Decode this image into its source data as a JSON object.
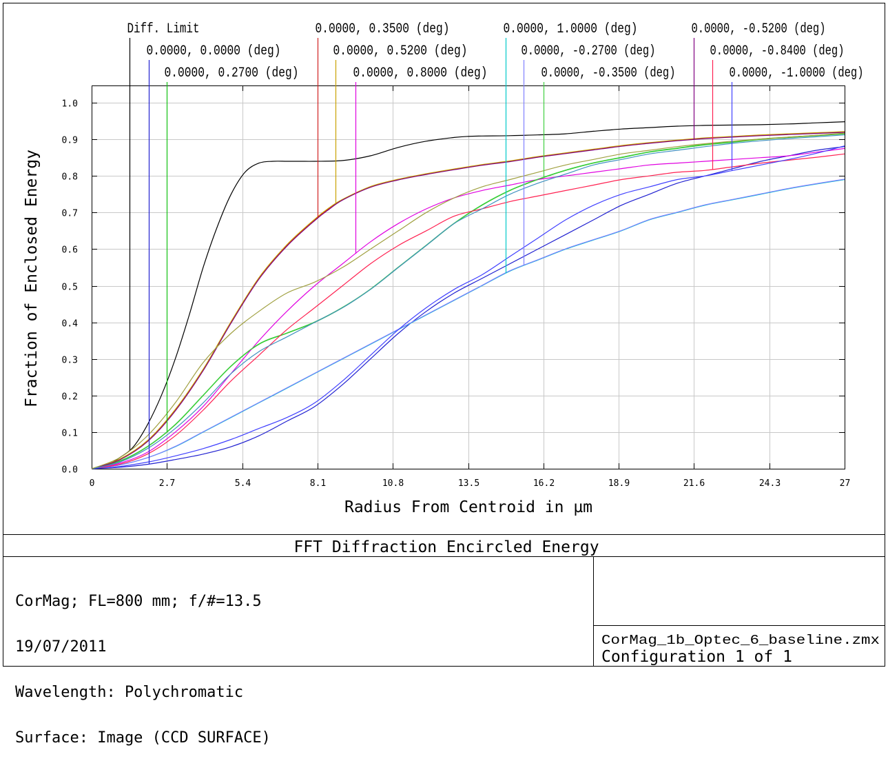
{
  "chart_data": {
    "type": "line",
    "title": "FFT Diffraction Encircled Energy",
    "xlabel": "Radius From Centroid in µm",
    "ylabel": "Fraction of Enclosed Energy",
    "xlim": [
      0,
      27
    ],
    "ylim": [
      0,
      1.05
    ],
    "x_ticks": [
      "0",
      "2.7",
      "5.4",
      "8.1",
      "10.8",
      "13.5",
      "16.2",
      "18.9",
      "21.6",
      "24.3",
      "27"
    ],
    "y_ticks": [
      "0.0",
      "0.1",
      "0.2",
      "0.3",
      "0.4",
      "0.5",
      "0.6",
      "0.7",
      "0.8",
      "0.9",
      "1.0"
    ],
    "grid": true,
    "series": [
      {
        "name": "Diff. Limit",
        "color": "#000000",
        "marker_x": 1.35,
        "x": [
          0,
          0.5,
          1,
          1.5,
          2,
          2.5,
          3,
          3.5,
          4,
          4.5,
          5,
          5.5,
          6,
          6.5,
          7,
          7.5,
          8,
          9,
          10,
          11,
          12,
          13,
          13.5,
          14,
          15,
          16,
          17,
          18,
          19,
          20,
          21,
          22,
          23,
          24,
          25,
          26,
          27
        ],
        "y": [
          0,
          0.008,
          0.03,
          0.06,
          0.12,
          0.2,
          0.3,
          0.42,
          0.55,
          0.66,
          0.75,
          0.81,
          0.835,
          0.84,
          0.84,
          0.84,
          0.84,
          0.842,
          0.855,
          0.878,
          0.895,
          0.905,
          0.908,
          0.909,
          0.91,
          0.912,
          0.915,
          0.922,
          0.928,
          0.932,
          0.936,
          0.938,
          0.939,
          0.94,
          0.942,
          0.945,
          0.948
        ]
      },
      {
        "name": "0.0000, 0.0000 (deg)",
        "color": "#2020d0",
        "marker_x": 2.05,
        "x": [
          0,
          1,
          2,
          3,
          4,
          5,
          6,
          7,
          8,
          9,
          10,
          11,
          12,
          13,
          14,
          15,
          16,
          17,
          18,
          19,
          20,
          21,
          22,
          23,
          24,
          25,
          26,
          27
        ],
        "y": [
          0,
          0.004,
          0.012,
          0.025,
          0.04,
          0.06,
          0.09,
          0.13,
          0.17,
          0.23,
          0.3,
          0.37,
          0.43,
          0.48,
          0.52,
          0.56,
          0.6,
          0.64,
          0.68,
          0.72,
          0.75,
          0.78,
          0.8,
          0.82,
          0.84,
          0.855,
          0.87,
          0.88
        ]
      },
      {
        "name": "0.0000, 0.2700 (deg)",
        "color": "#10c010",
        "marker_x": 2.7,
        "x": [
          0,
          1,
          2,
          3,
          4,
          5,
          6,
          7,
          8,
          9,
          10,
          11,
          12,
          13,
          14,
          15,
          16,
          17,
          18,
          19,
          20,
          21,
          22,
          23,
          24,
          25,
          26,
          27
        ],
        "y": [
          0,
          0.02,
          0.06,
          0.12,
          0.2,
          0.28,
          0.34,
          0.37,
          0.4,
          0.44,
          0.49,
          0.55,
          0.61,
          0.67,
          0.72,
          0.76,
          0.79,
          0.815,
          0.835,
          0.85,
          0.865,
          0.875,
          0.885,
          0.892,
          0.9,
          0.905,
          0.91,
          0.915
        ]
      },
      {
        "name": "0.0000, 0.3500 (deg)",
        "color": "#d02020",
        "marker_x": 8.1,
        "x": [
          0,
          1,
          2,
          3,
          4,
          5,
          6,
          7,
          8,
          8.5,
          9,
          10,
          11,
          12,
          13,
          14,
          15,
          16,
          17,
          18,
          19,
          20,
          21,
          22,
          23,
          24,
          25,
          26,
          27
        ],
        "y": [
          0,
          0.025,
          0.075,
          0.16,
          0.27,
          0.4,
          0.52,
          0.61,
          0.68,
          0.71,
          0.735,
          0.77,
          0.79,
          0.805,
          0.818,
          0.83,
          0.84,
          0.852,
          0.862,
          0.872,
          0.882,
          0.89,
          0.897,
          0.903,
          0.907,
          0.911,
          0.914,
          0.917,
          0.92
        ]
      },
      {
        "name": "0.0000, 0.5200 (deg)",
        "color": "#c8a000",
        "marker_x": 8.75,
        "x": [
          0,
          1,
          2,
          3,
          4,
          5,
          6,
          7,
          8,
          8.5,
          9,
          10,
          11,
          12,
          13,
          14,
          15,
          16,
          17,
          18,
          19,
          20,
          21,
          22,
          23,
          24,
          25,
          26,
          27
        ],
        "y": [
          0,
          0.026,
          0.077,
          0.162,
          0.272,
          0.402,
          0.522,
          0.612,
          0.682,
          0.712,
          0.736,
          0.771,
          0.791,
          0.806,
          0.819,
          0.831,
          0.841,
          0.853,
          0.863,
          0.873,
          0.883,
          0.891,
          0.898,
          0.904,
          0.908,
          0.912,
          0.915,
          0.918,
          0.921
        ]
      },
      {
        "name": "0.0000, 0.8000 (deg)",
        "color": "#e000e0",
        "marker_x": 9.45,
        "x": [
          0,
          1,
          2,
          3,
          4,
          5,
          6,
          7,
          8,
          9,
          10,
          11,
          12,
          13,
          14,
          15,
          16,
          17,
          18,
          19,
          20,
          21,
          22,
          23,
          24,
          25,
          26,
          27
        ],
        "y": [
          0,
          0.015,
          0.045,
          0.1,
          0.17,
          0.26,
          0.35,
          0.43,
          0.5,
          0.56,
          0.62,
          0.67,
          0.71,
          0.74,
          0.76,
          0.775,
          0.79,
          0.8,
          0.81,
          0.82,
          0.83,
          0.835,
          0.84,
          0.845,
          0.85,
          0.855,
          0.865,
          0.875
        ]
      },
      {
        "name": "0.0000, 1.0000 (deg)",
        "color": "#00c8c8",
        "marker_x": 14.85,
        "x": [
          0,
          1,
          2,
          3,
          4,
          5,
          6,
          7,
          8,
          9,
          10,
          11,
          12,
          13,
          14,
          15,
          16,
          17,
          18,
          19,
          20,
          21,
          22,
          23,
          24,
          25,
          26,
          27
        ],
        "y": [
          0,
          0.01,
          0.03,
          0.06,
          0.1,
          0.14,
          0.18,
          0.22,
          0.26,
          0.3,
          0.34,
          0.38,
          0.42,
          0.46,
          0.5,
          0.54,
          0.57,
          0.6,
          0.625,
          0.65,
          0.68,
          0.7,
          0.72,
          0.735,
          0.75,
          0.765,
          0.778,
          0.79
        ]
      },
      {
        "name": "0.0000, -0.2700 (deg)",
        "color": "#8080ff",
        "marker_x": 15.5,
        "x": [
          0,
          1,
          2,
          3,
          4,
          5,
          6,
          7,
          8,
          9,
          10,
          11,
          12,
          13,
          14,
          15,
          16,
          17,
          18,
          19,
          20,
          21,
          22,
          23,
          24,
          25,
          26,
          27
        ],
        "y": [
          0,
          0.01,
          0.03,
          0.061,
          0.101,
          0.141,
          0.181,
          0.221,
          0.261,
          0.301,
          0.341,
          0.381,
          0.421,
          0.461,
          0.501,
          0.541,
          0.571,
          0.601,
          0.626,
          0.651,
          0.681,
          0.701,
          0.721,
          0.736,
          0.751,
          0.766,
          0.779,
          0.791
        ]
      },
      {
        "name": "0.0000, -0.3500 (deg)",
        "color": "#40d040",
        "marker_x": 16.2,
        "x": [
          0,
          1,
          2,
          3,
          4,
          5,
          6,
          7,
          8,
          9,
          10,
          11,
          12,
          13,
          14,
          15,
          16,
          17,
          18,
          19,
          20,
          21,
          22,
          23,
          24,
          25,
          26,
          27
        ],
        "y": [
          0,
          0.021,
          0.061,
          0.121,
          0.201,
          0.281,
          0.341,
          0.371,
          0.401,
          0.441,
          0.491,
          0.551,
          0.611,
          0.671,
          0.721,
          0.761,
          0.791,
          0.816,
          0.836,
          0.851,
          0.866,
          0.876,
          0.886,
          0.893,
          0.901,
          0.906,
          0.911,
          0.916
        ]
      },
      {
        "name": "0.0000, -0.5200 (deg)",
        "color": "#800080",
        "marker_x": 21.6,
        "x": [
          0,
          1,
          2,
          3,
          4,
          5,
          6,
          7,
          8,
          8.5,
          9,
          10,
          11,
          12,
          13,
          14,
          15,
          16,
          17,
          18,
          19,
          20,
          21,
          22,
          23,
          24,
          25,
          26,
          27
        ],
        "y": [
          0,
          0.024,
          0.074,
          0.158,
          0.268,
          0.398,
          0.518,
          0.608,
          0.678,
          0.708,
          0.734,
          0.769,
          0.789,
          0.804,
          0.817,
          0.829,
          0.839,
          0.851,
          0.861,
          0.871,
          0.881,
          0.889,
          0.896,
          0.902,
          0.906,
          0.91,
          0.913,
          0.916,
          0.919
        ]
      },
      {
        "name": "0.0000, -0.8400 (deg)",
        "color": "#ff2050",
        "marker_x": 22.25,
        "x": [
          0,
          1,
          2,
          3,
          4,
          5,
          6,
          7,
          8,
          9,
          10,
          11,
          12,
          13,
          14,
          15,
          16,
          17,
          18,
          19,
          20,
          21,
          22,
          23,
          24,
          25,
          26,
          27
        ],
        "y": [
          0,
          0.012,
          0.04,
          0.09,
          0.16,
          0.24,
          0.31,
          0.38,
          0.44,
          0.5,
          0.56,
          0.61,
          0.65,
          0.69,
          0.71,
          0.73,
          0.745,
          0.76,
          0.775,
          0.79,
          0.8,
          0.81,
          0.815,
          0.825,
          0.835,
          0.843,
          0.851,
          0.86
        ]
      },
      {
        "name": "0.0000, -1.0000 (deg)",
        "color": "#4040ff",
        "marker_x": 22.95,
        "x": [
          0,
          1,
          2,
          3,
          4,
          5,
          6,
          7,
          8,
          9,
          10,
          11,
          12,
          13,
          14,
          15,
          16,
          17,
          18,
          19,
          20,
          21,
          22,
          23,
          24,
          25,
          26,
          27
        ],
        "y": [
          0,
          0.006,
          0.018,
          0.035,
          0.055,
          0.08,
          0.11,
          0.14,
          0.18,
          0.24,
          0.31,
          0.38,
          0.44,
          0.49,
          0.53,
          0.58,
          0.63,
          0.68,
          0.72,
          0.75,
          0.77,
          0.79,
          0.8,
          0.815,
          0.83,
          0.845,
          0.862,
          0.882
        ]
      },
      {
        "name": "",
        "color": "#4090c0",
        "x": [
          0,
          1,
          2,
          3,
          4,
          5,
          6,
          7,
          8,
          9,
          10,
          11,
          12,
          13,
          14,
          15,
          16,
          17,
          18,
          19,
          20,
          21,
          22,
          23,
          24,
          25,
          26,
          27
        ],
        "y": [
          0,
          0.018,
          0.055,
          0.11,
          0.18,
          0.26,
          0.32,
          0.36,
          0.4,
          0.44,
          0.49,
          0.55,
          0.61,
          0.67,
          0.71,
          0.75,
          0.78,
          0.805,
          0.83,
          0.845,
          0.86,
          0.87,
          0.88,
          0.889,
          0.896,
          0.902,
          0.907,
          0.912
        ]
      },
      {
        "name": "",
        "color": "#a0a040",
        "x": [
          0,
          1,
          2,
          3,
          4,
          5,
          6,
          7,
          8,
          9,
          10,
          11,
          12,
          13,
          14,
          15,
          16,
          17,
          18,
          19,
          20,
          21,
          22,
          23,
          24,
          25,
          26,
          27
        ],
        "y": [
          0,
          0.03,
          0.09,
          0.18,
          0.29,
          0.37,
          0.43,
          0.48,
          0.51,
          0.55,
          0.6,
          0.65,
          0.7,
          0.74,
          0.77,
          0.79,
          0.81,
          0.83,
          0.845,
          0.86,
          0.87,
          0.88,
          0.888,
          0.895,
          0.901,
          0.906,
          0.911,
          0.917
        ]
      }
    ]
  },
  "info": {
    "title": "FFT Diffraction Encircled Energy",
    "lines": [
      "CorMag; FL=800 mm; f/#=13.5",
      "19/07/2011",
      "Wavelength: Polychromatic",
      "Surface: Image (CCD SURFACE)"
    ],
    "file_name": "CorMag_1b_Optec_6_baseline.zmx",
    "configuration": "Configuration 1 of 1"
  }
}
